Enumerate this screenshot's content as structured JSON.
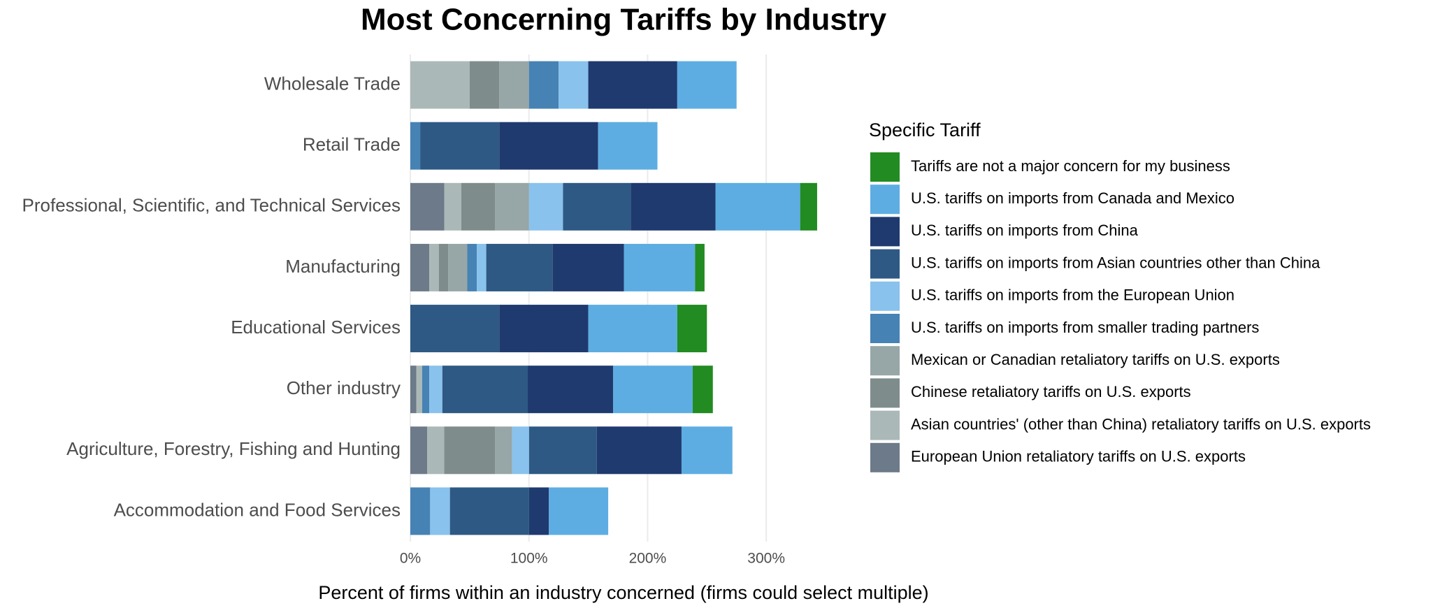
{
  "chart_data": {
    "type": "stacked-bar-horizontal",
    "title": "Most Concerning Tariffs by Industry",
    "x_label": "Percent of firms within an industry concerned (firms could select multiple)",
    "legend_title": "Specific Tariff",
    "legend_position": "right",
    "grid": true,
    "categories": [
      "Wholesale Trade",
      "Retail Trade",
      "Professional, Scientific, and Technical Services",
      "Manufacturing",
      "Educational Services",
      "Other industry",
      "Agriculture, Forestry, Fishing and Hunting",
      "Accommodation and Food Services"
    ],
    "xlim": [
      0,
      350
    ],
    "xticks": [
      {
        "value": 0,
        "label": "0%"
      },
      {
        "value": 100,
        "label": "100%"
      },
      {
        "value": 200,
        "label": "200%"
      },
      {
        "value": 300,
        "label": "300%"
      }
    ],
    "series": [
      {
        "name": "Tariffs are not a major concern for my business",
        "color": "#228b22",
        "values": [
          0,
          0,
          14.3,
          8,
          25,
          17,
          0,
          0
        ]
      },
      {
        "name": "U.S. tariffs on imports from Canada and Mexico",
        "color": "#5dade2",
        "values": [
          50,
          50,
          71.4,
          60,
          75,
          67,
          42.9,
          50
        ]
      },
      {
        "name": "U.S. tariffs on imports from China",
        "color": "#1f3a6f",
        "values": [
          75,
          83.3,
          71.4,
          60,
          75,
          72,
          71.4,
          16.7
        ]
      },
      {
        "name": "U.S. tariffs on imports from Asian countries other than China",
        "color": "#2e5984",
        "values": [
          0,
          66.7,
          57.1,
          56,
          75,
          72,
          57.1,
          66.7
        ]
      },
      {
        "name": "U.S. tariffs on imports from the European Union",
        "color": "#89c2ec",
        "values": [
          25,
          0,
          28.6,
          8,
          0,
          11,
          14.3,
          16.7
        ]
      },
      {
        "name": "U.S. tariffs on imports from smaller trading partners",
        "color": "#4682b4",
        "values": [
          25,
          8.3,
          0,
          8,
          0,
          6,
          0,
          16.7
        ]
      },
      {
        "name": "Mexican or Canadian retaliatory tariffs on U.S. exports",
        "color": "#97a6a6",
        "values": [
          25,
          0,
          28.6,
          16,
          0,
          0,
          14.3,
          0
        ]
      },
      {
        "name": "Chinese retaliatory tariffs on U.S. exports",
        "color": "#7f8c8c",
        "values": [
          25,
          0,
          28.6,
          8,
          0,
          0,
          42.9,
          0
        ]
      },
      {
        "name": "Asian countries' (other than China) retaliatory tariffs on U.S. exports",
        "color": "#abb8b8",
        "values": [
          50,
          0,
          14.3,
          8,
          0,
          5,
          14.3,
          0
        ]
      },
      {
        "name": "European Union retaliatory tariffs on U.S. exports",
        "color": "#6c7a89",
        "values": [
          0,
          0,
          28.6,
          16,
          0,
          5,
          14.3,
          0
        ]
      }
    ]
  }
}
